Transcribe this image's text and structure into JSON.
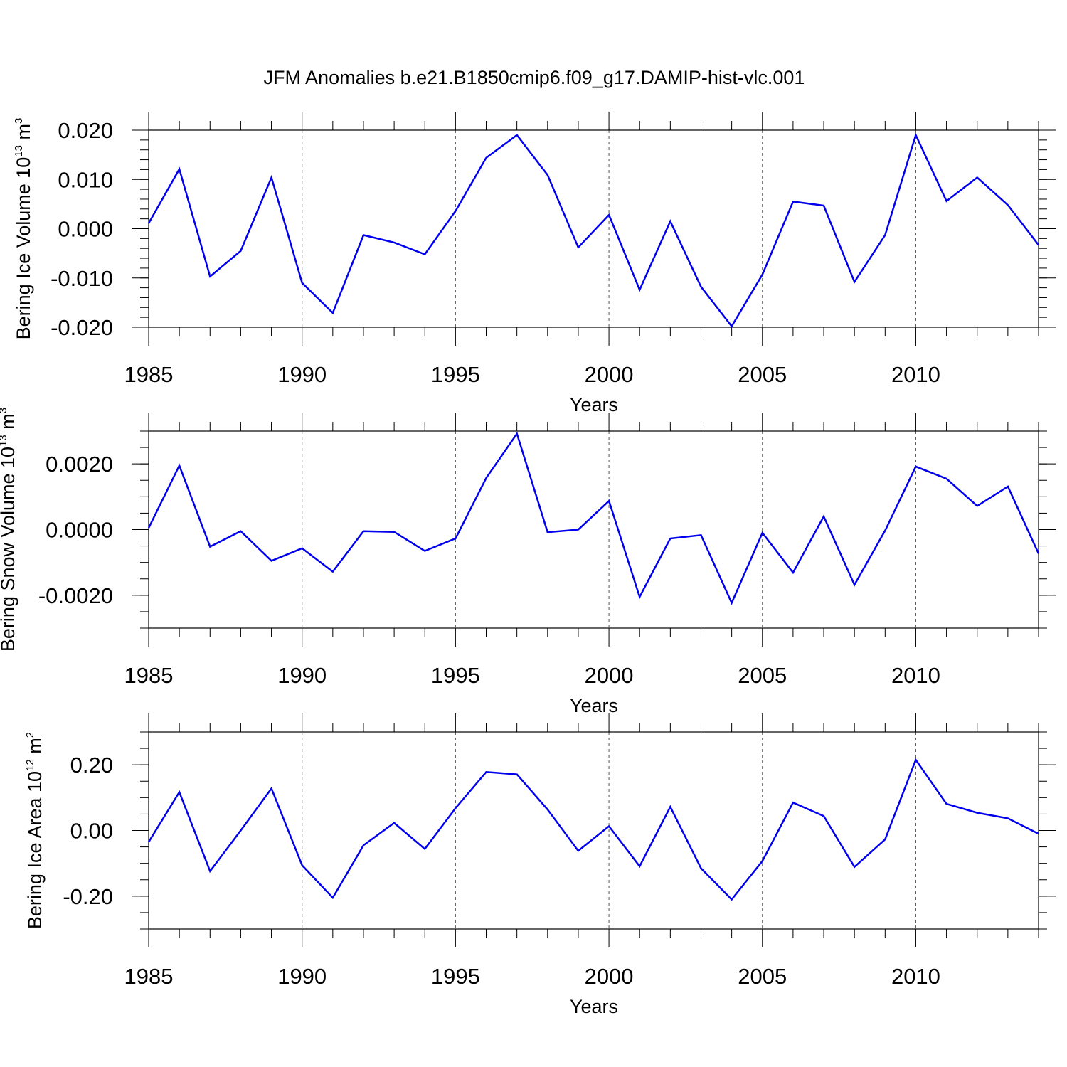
{
  "figure_title": "JFM Anomalies b.e21.B1850cmip6.f09_g17.DAMIP-hist-vlc.001",
  "colors": {
    "line": "#0000ee",
    "axis": "#000000",
    "grid": "#555555"
  },
  "chart_data": [
    {
      "type": "line",
      "ylabel": {
        "base": "Bering Ice Volume 10",
        "exp": "13",
        "unit": " m",
        "unit_exp": "3"
      },
      "xlabel": "Years",
      "xlim": [
        1985,
        2014
      ],
      "ylim": [
        -0.02,
        0.02
      ],
      "ytick_values": [
        -0.02,
        -0.01,
        0.0,
        0.01,
        0.02
      ],
      "ytick_labels": [
        "-0.020",
        "-0.010",
        "0.000",
        "0.010",
        "0.020"
      ],
      "yminor_step": 0.002,
      "xtick_values": [
        1985,
        1990,
        1995,
        2000,
        2005,
        2010
      ],
      "xtick_labels": [
        "1985",
        "1990",
        "1995",
        "2000",
        "2005",
        "2010"
      ],
      "grid_x": [
        1990,
        1995,
        2000,
        2005,
        2010
      ],
      "x": [
        1985,
        1986,
        1987,
        1988,
        1989,
        1990,
        1991,
        1992,
        1993,
        1994,
        1995,
        1996,
        1997,
        1998,
        1999,
        2000,
        2001,
        2002,
        2003,
        2004,
        2005,
        2006,
        2007,
        2008,
        2009,
        2010,
        2011,
        2012,
        2013,
        2014
      ],
      "values": [
        0.0011,
        0.0121,
        -0.0097,
        -0.0045,
        0.0104,
        -0.011,
        -0.0171,
        -0.0013,
        -0.0028,
        -0.0052,
        0.0036,
        0.0144,
        0.019,
        0.0109,
        -0.0038,
        0.0028,
        -0.0124,
        0.0015,
        -0.0118,
        -0.0198,
        -0.0093,
        0.0055,
        0.0047,
        -0.0108,
        -0.0013,
        0.019,
        0.0056,
        0.0104,
        0.0048,
        -0.0033
      ]
    },
    {
      "type": "line",
      "ylabel": {
        "base": "Bering Snow Volume 10",
        "exp": "13",
        "unit": " m",
        "unit_exp": "3"
      },
      "xlabel": "Years",
      "xlim": [
        1985,
        2014
      ],
      "ylim": [
        -0.003,
        0.003
      ],
      "ytick_values": [
        -0.002,
        0.0,
        0.002
      ],
      "ytick_labels": [
        "-0.0020",
        "0.0000",
        "0.0020"
      ],
      "yminor_step": 0.0005,
      "xtick_values": [
        1985,
        1990,
        1995,
        2000,
        2005,
        2010
      ],
      "xtick_labels": [
        "1985",
        "1990",
        "1995",
        "2000",
        "2005",
        "2010"
      ],
      "grid_x": [
        1990,
        1995,
        2000,
        2005,
        2010
      ],
      "x": [
        1985,
        1986,
        1987,
        1988,
        1989,
        1990,
        1991,
        1992,
        1993,
        1994,
        1995,
        1996,
        1997,
        1998,
        1999,
        2000,
        2001,
        2002,
        2003,
        2004,
        2005,
        2006,
        2007,
        2008,
        2009,
        2010,
        2011,
        2012,
        2013,
        2014
      ],
      "values": [
        5e-05,
        0.00195,
        -0.00052,
        -5e-05,
        -0.00095,
        -0.00057,
        -0.00128,
        -5e-05,
        -7e-05,
        -0.00065,
        -0.00027,
        0.00157,
        0.00292,
        -8e-05,
        0.0,
        0.00087,
        -0.00205,
        -0.00027,
        -0.00017,
        -0.00223,
        -0.0001,
        -0.00131,
        0.0004,
        -0.00168,
        -3e-05,
        0.00192,
        0.00155,
        0.00072,
        0.00131,
        -0.00073
      ]
    },
    {
      "type": "line",
      "ylabel": {
        "base": "Bering Ice Area 10",
        "exp": "12",
        "unit": " m",
        "unit_exp": "2"
      },
      "xlabel": "Years",
      "xlim": [
        1985,
        2014
      ],
      "ylim": [
        -0.3,
        0.3
      ],
      "ytick_values": [
        -0.2,
        0.0,
        0.2
      ],
      "ytick_labels": [
        "-0.20",
        "0.00",
        "0.20"
      ],
      "yminor_step": 0.05,
      "xtick_values": [
        1985,
        1990,
        1995,
        2000,
        2005,
        2010
      ],
      "xtick_labels": [
        "1985",
        "1990",
        "1995",
        "2000",
        "2005",
        "2010"
      ],
      "grid_x": [
        1990,
        1995,
        2000,
        2005,
        2010
      ],
      "x": [
        1985,
        1986,
        1987,
        1988,
        1989,
        1990,
        1991,
        1992,
        1993,
        1994,
        1995,
        1996,
        1997,
        1998,
        1999,
        2000,
        2001,
        2002,
        2003,
        2004,
        2005,
        2006,
        2007,
        2008,
        2009,
        2010,
        2011,
        2012,
        2013,
        2014
      ],
      "values": [
        -0.035,
        0.117,
        -0.124,
        0.0,
        0.128,
        -0.106,
        -0.205,
        -0.045,
        0.023,
        -0.056,
        0.068,
        0.178,
        0.171,
        0.064,
        -0.062,
        0.013,
        -0.109,
        0.072,
        -0.115,
        -0.21,
        -0.093,
        0.085,
        0.044,
        -0.111,
        -0.027,
        0.215,
        0.081,
        0.054,
        0.037,
        -0.01
      ]
    }
  ]
}
